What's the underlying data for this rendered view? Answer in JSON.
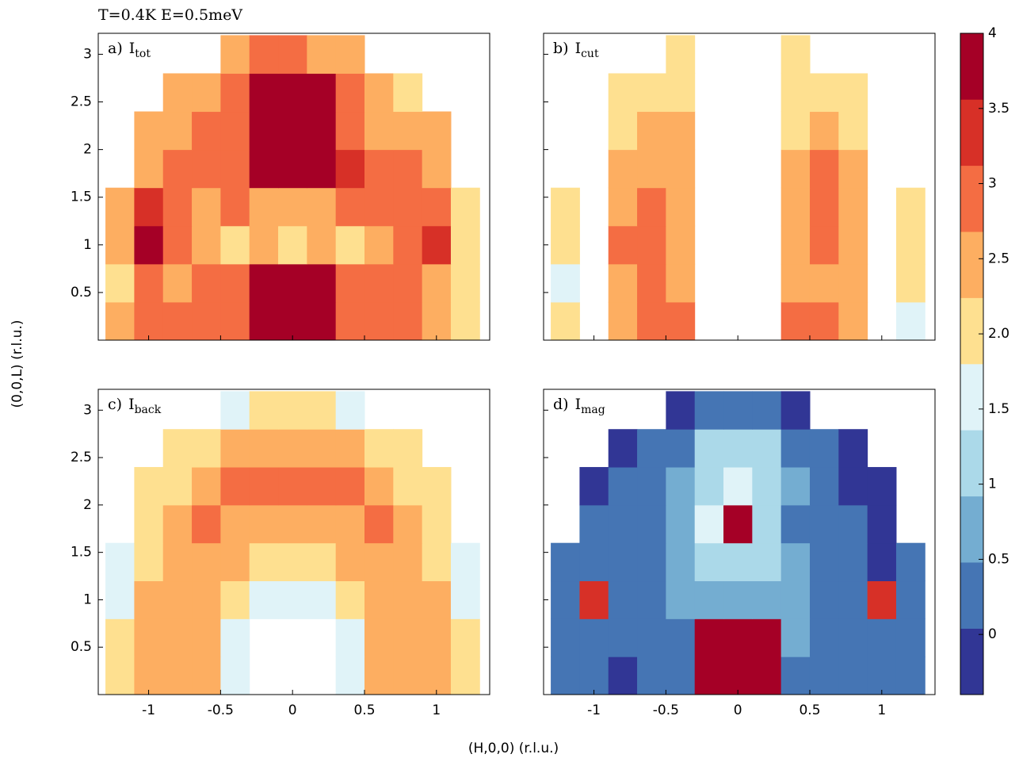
{
  "title": "T=0.4K  E=0.5meV",
  "x_label": "(H,0,0) (r.l.u.)",
  "y_label": "(0,0,L) (r.l.u.)",
  "colorbar": {
    "bounds": [
      -0.4,
      0.04,
      0.48,
      0.92,
      1.36,
      1.8,
      2.24,
      2.68,
      3.12,
      3.56,
      4.0
    ],
    "colors": [
      "#313695",
      "#4575b4",
      "#74add1",
      "#abd9e9",
      "#e0f3f8",
      "#fee090",
      "#fdae61",
      "#f46d43",
      "#d73027",
      "#a50026"
    ],
    "ticks": [
      0,
      0.5,
      1,
      1.5,
      {
        "value": 2,
        "label": "2.0"
      },
      2.5,
      3,
      3.5,
      4
    ]
  },
  "chart_data": [
    {
      "type": "heatmap",
      "label_prefix": "a)",
      "symbol": "I",
      "subscript": "tot",
      "xlim": [
        -1.35,
        1.37
      ],
      "ylim": [
        0,
        3.22
      ],
      "xticks": [
        -1,
        -0.5,
        0,
        0.5,
        1
      ],
      "yticks": [
        0.5,
        1,
        1.5,
        2,
        2.5,
        3
      ],
      "show_xticklabels": false,
      "show_yticklabels": true,
      "x": [
        -1.2,
        -1.0,
        -0.8,
        -0.6,
        -0.4,
        -0.2,
        0,
        0.2,
        0.4,
        0.6,
        0.8,
        1.0,
        1.2
      ],
      "y": [
        0.2,
        0.6,
        1.0,
        1.4,
        1.8,
        2.2,
        2.6,
        3.0
      ],
      "z": [
        [
          2.6,
          2.8,
          2.9,
          2.7,
          2.8,
          4,
          4,
          4,
          2.9,
          2.8,
          2.7,
          2.5,
          2.2
        ],
        [
          2.2,
          2.9,
          2.6,
          2.8,
          2.7,
          4,
          4,
          4,
          2.8,
          2.7,
          2.9,
          2.6,
          1.9
        ],
        [
          2.4,
          3.6,
          2.7,
          2.5,
          2.2,
          2.3,
          2.1,
          2.3,
          2.2,
          2.4,
          2.8,
          3.5,
          2.1
        ],
        [
          2.3,
          3.2,
          2.8,
          2.6,
          2.7,
          2.6,
          2.5,
          2.6,
          2.8,
          2.7,
          2.9,
          2.9,
          1.8
        ],
        [
          null,
          2.5,
          2.8,
          2.7,
          3.0,
          4,
          4,
          4,
          3.2,
          2.8,
          2.7,
          2.6,
          null
        ],
        [
          null,
          2.4,
          2.6,
          2.7,
          2.8,
          4,
          4,
          4,
          2.9,
          2.6,
          2.5,
          2.3,
          null
        ],
        [
          null,
          null,
          2.3,
          2.6,
          2.7,
          3.9,
          4,
          3.8,
          2.7,
          2.6,
          2.2,
          null,
          null
        ],
        [
          null,
          null,
          null,
          null,
          2.4,
          2.7,
          2.9,
          2.6,
          2.3,
          null,
          null,
          null,
          null
        ]
      ]
    },
    {
      "type": "heatmap",
      "label_prefix": "b)",
      "symbol": "I",
      "subscript": "cut",
      "xlim": [
        -1.35,
        1.37
      ],
      "ylim": [
        0,
        3.22
      ],
      "xticks": [
        -1,
        -0.5,
        0,
        0.5,
        1
      ],
      "yticks": [
        0.5,
        1,
        1.5,
        2,
        2.5,
        3
      ],
      "show_xticklabels": false,
      "show_yticklabels": false,
      "x": [
        -1.2,
        -1.0,
        -0.8,
        -0.6,
        -0.4,
        -0.2,
        0,
        0.2,
        0.4,
        0.6,
        0.8,
        1.0,
        1.2
      ],
      "y": [
        0.2,
        0.6,
        1.0,
        1.4,
        1.8,
        2.2,
        2.6,
        3.0
      ],
      "z": [
        [
          1.8,
          null,
          2.6,
          2.8,
          2.7,
          null,
          null,
          null,
          2.7,
          2.8,
          2.6,
          null,
          1.7
        ],
        [
          1.6,
          null,
          2.5,
          2.7,
          2.6,
          null,
          null,
          null,
          2.3,
          2.6,
          2.4,
          null,
          1.8
        ],
        [
          2.2,
          null,
          2.9,
          2.7,
          2.5,
          null,
          null,
          null,
          2.4,
          2.7,
          2.5,
          null,
          1.9
        ],
        [
          1.9,
          null,
          2.6,
          2.8,
          2.6,
          null,
          null,
          null,
          2.6,
          2.8,
          2.6,
          null,
          1.8
        ],
        [
          null,
          null,
          2.3,
          2.6,
          2.5,
          null,
          null,
          null,
          2.5,
          2.7,
          2.3,
          null,
          null
        ],
        [
          null,
          null,
          2.0,
          2.4,
          2.3,
          null,
          null,
          null,
          2.2,
          2.5,
          2.0,
          null,
          null
        ],
        [
          null,
          null,
          1.9,
          2.2,
          2.1,
          null,
          null,
          null,
          1.9,
          2.1,
          1.8,
          null,
          null
        ],
        [
          null,
          null,
          null,
          null,
          2.2,
          null,
          null,
          null,
          2.0,
          null,
          null,
          null,
          null
        ]
      ]
    },
    {
      "type": "heatmap",
      "label_prefix": "c)",
      "symbol": "I",
      "subscript": "back",
      "xlim": [
        -1.35,
        1.37
      ],
      "ylim": [
        0,
        3.22
      ],
      "xticks": [
        -1,
        -0.5,
        0,
        0.5,
        1
      ],
      "yticks": [
        0.5,
        1,
        1.5,
        2,
        2.5,
        3
      ],
      "show_xticklabels": true,
      "show_yticklabels": true,
      "x": [
        -1.2,
        -1.0,
        -0.8,
        -0.6,
        -0.4,
        -0.2,
        0,
        0.2,
        0.4,
        0.6,
        0.8,
        1.0,
        1.2
      ],
      "y": [
        0.2,
        0.6,
        1.0,
        1.4,
        1.8,
        2.2,
        2.6,
        3.0
      ],
      "z": [
        [
          2.0,
          2.4,
          2.4,
          2.4,
          1.7,
          null,
          null,
          null,
          1.7,
          2.4,
          2.4,
          2.4,
          2.0
        ],
        [
          2.0,
          2.4,
          2.5,
          2.4,
          1.6,
          null,
          null,
          null,
          1.6,
          2.4,
          2.5,
          2.4,
          2.0
        ],
        [
          1.7,
          2.3,
          2.5,
          2.4,
          2.0,
          1.6,
          1.5,
          1.6,
          2.0,
          2.4,
          2.5,
          2.3,
          1.7
        ],
        [
          1.6,
          2.1,
          2.5,
          2.5,
          2.4,
          2.2,
          2.1,
          2.2,
          2.4,
          2.5,
          2.5,
          2.1,
          1.6
        ],
        [
          null,
          2.0,
          2.4,
          2.7,
          2.5,
          2.5,
          2.5,
          2.5,
          2.5,
          2.7,
          2.4,
          2.0,
          null
        ],
        [
          null,
          1.8,
          2.2,
          2.5,
          2.8,
          2.9,
          2.9,
          2.9,
          2.8,
          2.5,
          2.2,
          1.8,
          null
        ],
        [
          null,
          null,
          1.8,
          2.2,
          2.4,
          2.5,
          2.5,
          2.5,
          2.4,
          2.2,
          1.8,
          null,
          null
        ],
        [
          null,
          null,
          null,
          null,
          1.7,
          1.9,
          2.0,
          1.9,
          1.7,
          null,
          null,
          null,
          null
        ]
      ]
    },
    {
      "type": "heatmap",
      "label_prefix": "d)",
      "symbol": "I",
      "subscript": "mag",
      "xlim": [
        -1.35,
        1.37
      ],
      "ylim": [
        0,
        3.22
      ],
      "xticks": [
        -1,
        -0.5,
        0,
        0.5,
        1
      ],
      "yticks": [
        0.5,
        1,
        1.5,
        2,
        2.5,
        3
      ],
      "show_xticklabels": true,
      "show_yticklabels": false,
      "x": [
        -1.2,
        -1.0,
        -0.8,
        -0.6,
        -0.4,
        -0.2,
        0,
        0.2,
        0.4,
        0.6,
        0.8,
        1.0,
        1.2
      ],
      "y": [
        0.2,
        0.6,
        1.0,
        1.4,
        1.8,
        2.2,
        2.6,
        3.0
      ],
      "z": [
        [
          0.3,
          0.1,
          0.0,
          0.2,
          0.3,
          4,
          4,
          4,
          0.4,
          0.2,
          0.1,
          0.2,
          0.3
        ],
        [
          0.4,
          0.2,
          0.1,
          0.2,
          0.4,
          4,
          4,
          4,
          0.5,
          0.2,
          0.1,
          0.3,
          0.2
        ],
        [
          0.2,
          3.2,
          0.3,
          0.1,
          0.5,
          0.9,
          0.7,
          0.8,
          0.5,
          0.2,
          0.4,
          3.3,
          0.1
        ],
        [
          0.1,
          0.2,
          0.3,
          0.2,
          0.6,
          1.2,
          1.3,
          1.2,
          0.5,
          0.3,
          0.1,
          0.0,
          0.2
        ],
        [
          null,
          0.1,
          0.2,
          0.2,
          0.5,
          1.4,
          4,
          1.3,
          0.4,
          0.1,
          0.1,
          0.0,
          null
        ],
        [
          null,
          0.0,
          0.2,
          0.1,
          0.6,
          1.3,
          1.5,
          1.2,
          0.5,
          0.2,
          0.0,
          -0.1,
          null
        ],
        [
          null,
          null,
          0.0,
          0.2,
          0.3,
          1.1,
          1.2,
          1.0,
          0.3,
          0.1,
          0.0,
          null,
          null
        ],
        [
          null,
          null,
          null,
          null,
          0.0,
          0.4,
          0.3,
          0.1,
          -0.1,
          null,
          null,
          null,
          null
        ]
      ]
    }
  ]
}
